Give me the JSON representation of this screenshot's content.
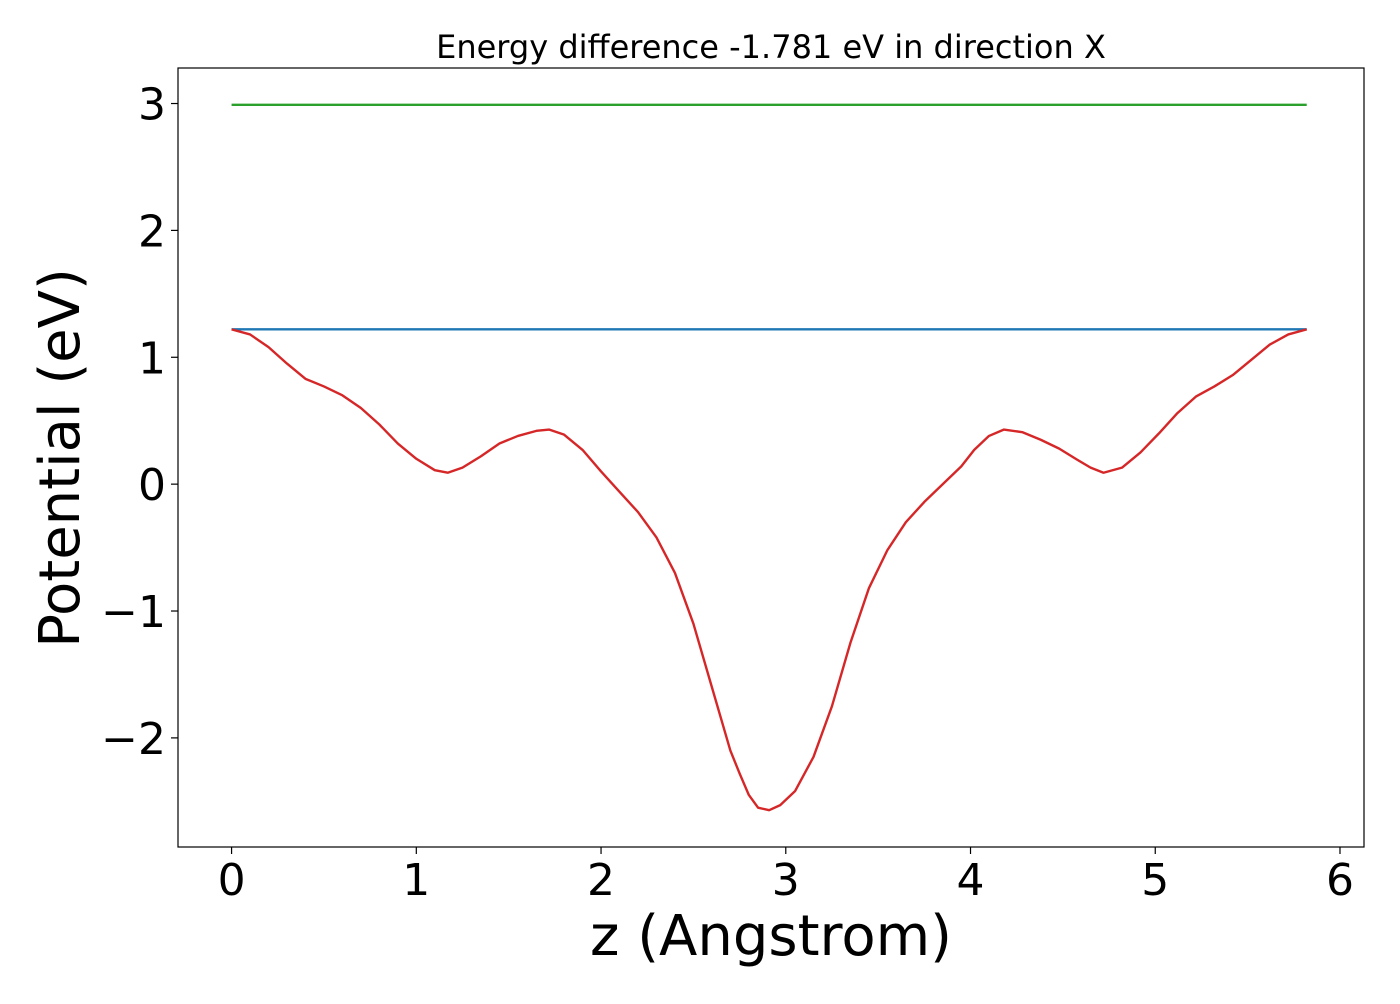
{
  "chart_data": {
    "type": "line",
    "title": "Energy difference -1.781 eV in direction X",
    "xlabel": "z (Angstrom)",
    "ylabel": "Potential (eV)",
    "xlim": [
      -0.29,
      6.13
    ],
    "ylim": [
      -2.86,
      3.28
    ],
    "xticks": [
      0,
      1,
      2,
      3,
      4,
      5,
      6
    ],
    "xtick_labels": [
      "0",
      "1",
      "2",
      "3",
      "4",
      "5",
      "6"
    ],
    "yticks": [
      -2,
      -1,
      0,
      1,
      2,
      3
    ],
    "ytick_labels": [
      "−2",
      "−1",
      "0",
      "1",
      "2",
      "3"
    ],
    "grid": false,
    "legend": "none",
    "series": [
      {
        "color": "#2ca02c",
        "x": [
          0,
          5.82
        ],
        "y": [
          2.99,
          2.99
        ]
      },
      {
        "color": "#1f77b4",
        "x": [
          0,
          5.82
        ],
        "y": [
          1.22,
          1.22
        ]
      },
      {
        "color": "#d62728",
        "x": [
          0,
          0.1,
          0.2,
          0.3,
          0.4,
          0.5,
          0.6,
          0.7,
          0.8,
          0.9,
          1.0,
          1.1,
          1.17,
          1.25,
          1.35,
          1.45,
          1.55,
          1.65,
          1.72,
          1.8,
          1.9,
          2.0,
          2.1,
          2.2,
          2.3,
          2.4,
          2.5,
          2.6,
          2.7,
          2.75,
          2.8,
          2.85,
          2.91,
          2.97,
          3.05,
          3.15,
          3.25,
          3.35,
          3.45,
          3.55,
          3.65,
          3.75,
          3.85,
          3.95,
          4.02,
          4.1,
          4.18,
          4.28,
          4.38,
          4.48,
          4.58,
          4.65,
          4.72,
          4.82,
          4.92,
          5.02,
          5.12,
          5.22,
          5.32,
          5.42,
          5.52,
          5.62,
          5.72,
          5.82
        ],
        "y": [
          1.22,
          1.18,
          1.08,
          0.95,
          0.83,
          0.77,
          0.7,
          0.6,
          0.47,
          0.32,
          0.2,
          0.11,
          0.09,
          0.13,
          0.22,
          0.32,
          0.38,
          0.42,
          0.43,
          0.39,
          0.27,
          0.1,
          -0.06,
          -0.22,
          -0.42,
          -0.7,
          -1.1,
          -1.6,
          -2.1,
          -2.28,
          -2.45,
          -2.55,
          -2.57,
          -2.53,
          -2.42,
          -2.15,
          -1.75,
          -1.25,
          -0.82,
          -0.52,
          -0.3,
          -0.14,
          0.0,
          0.14,
          0.27,
          0.38,
          0.43,
          0.41,
          0.35,
          0.28,
          0.19,
          0.13,
          0.09,
          0.13,
          0.25,
          0.4,
          0.56,
          0.69,
          0.77,
          0.86,
          0.98,
          1.1,
          1.18,
          1.22
        ]
      }
    ]
  }
}
